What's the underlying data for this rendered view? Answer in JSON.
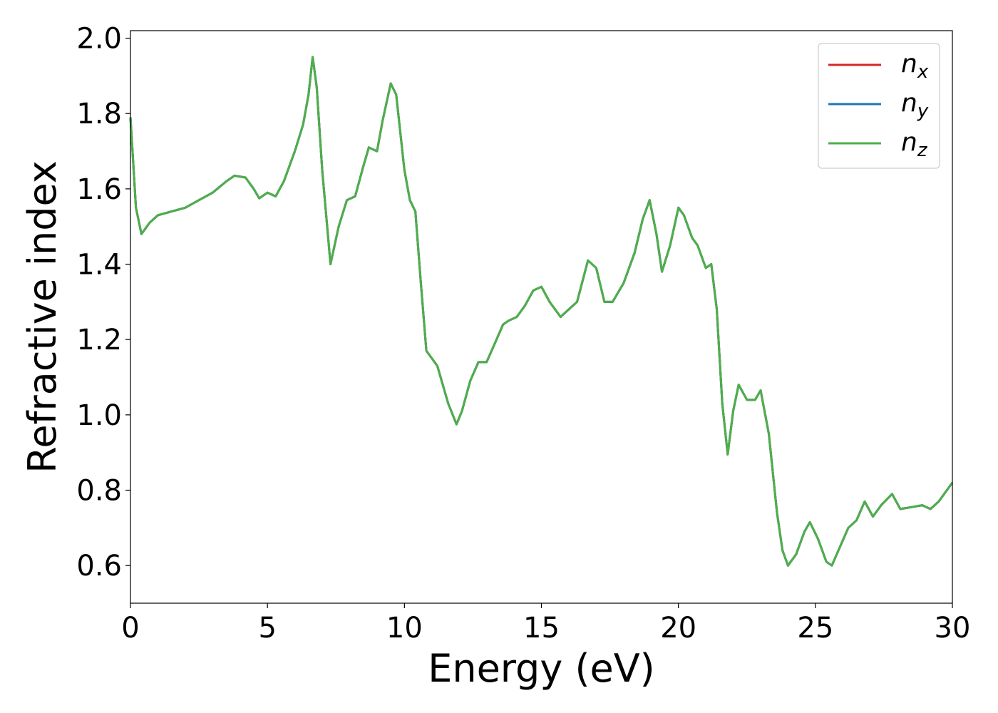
{
  "chart_data": {
    "type": "line",
    "title": "",
    "xlabel": "Energy (eV)",
    "ylabel": "Refractive index",
    "xlim": [
      0,
      30
    ],
    "ylim": [
      0.5,
      2.02
    ],
    "xticks": [
      0,
      5,
      10,
      15,
      20,
      25,
      30
    ],
    "xtick_labels": [
      "0",
      "5",
      "10",
      "15",
      "20",
      "25",
      "30"
    ],
    "yticks": [
      0.6,
      0.8,
      1.0,
      1.2,
      1.4,
      1.6,
      1.8,
      2.0
    ],
    "ytick_labels": [
      "0.6",
      "0.8",
      "1.0",
      "1.2",
      "1.4",
      "1.6",
      "1.8",
      "2.0"
    ],
    "grid": false,
    "legend_position": "top-right",
    "x": [
      0,
      0.2,
      0.4,
      0.7,
      1.0,
      1.5,
      2.0,
      2.5,
      3.0,
      3.5,
      3.8,
      4.2,
      4.5,
      4.7,
      5.0,
      5.3,
      5.6,
      6.0,
      6.3,
      6.5,
      6.65,
      6.8,
      7.0,
      7.3,
      7.6,
      7.9,
      8.2,
      8.5,
      8.7,
      9.0,
      9.2,
      9.5,
      9.7,
      10.0,
      10.2,
      10.4,
      10.6,
      10.8,
      11.0,
      11.2,
      11.4,
      11.6,
      11.9,
      12.1,
      12.4,
      12.7,
      13.0,
      13.3,
      13.6,
      13.8,
      14.1,
      14.4,
      14.7,
      15.0,
      15.3,
      15.7,
      16.0,
      16.3,
      16.7,
      17.0,
      17.3,
      17.6,
      18.0,
      18.4,
      18.7,
      18.95,
      19.2,
      19.4,
      19.7,
      20.0,
      20.2,
      20.5,
      20.7,
      21.0,
      21.2,
      21.4,
      21.6,
      21.8,
      22.0,
      22.2,
      22.5,
      22.8,
      23.0,
      23.3,
      23.6,
      23.8,
      24.0,
      24.3,
      24.6,
      24.8,
      25.1,
      25.4,
      25.6,
      25.9,
      26.2,
      26.5,
      26.8,
      27.1,
      27.4,
      27.8,
      28.1,
      28.5,
      28.9,
      29.2,
      29.5,
      29.8,
      30.0
    ],
    "series": [
      {
        "name": "n_x",
        "color": "#d62728",
        "values": [
          1.79,
          1.55,
          1.48,
          1.51,
          1.53,
          1.54,
          1.55,
          1.57,
          1.59,
          1.62,
          1.635,
          1.63,
          1.6,
          1.575,
          1.59,
          1.58,
          1.62,
          1.7,
          1.77,
          1.85,
          1.95,
          1.87,
          1.65,
          1.4,
          1.5,
          1.57,
          1.58,
          1.66,
          1.71,
          1.7,
          1.78,
          1.88,
          1.85,
          1.65,
          1.57,
          1.54,
          1.35,
          1.17,
          1.15,
          1.13,
          1.08,
          1.03,
          0.975,
          1.01,
          1.09,
          1.14,
          1.14,
          1.19,
          1.24,
          1.25,
          1.26,
          1.29,
          1.33,
          1.34,
          1.3,
          1.26,
          1.28,
          1.3,
          1.41,
          1.39,
          1.3,
          1.3,
          1.35,
          1.43,
          1.52,
          1.57,
          1.48,
          1.38,
          1.45,
          1.55,
          1.53,
          1.47,
          1.45,
          1.39,
          1.4,
          1.28,
          1.03,
          0.895,
          1.01,
          1.08,
          1.04,
          1.04,
          1.065,
          0.95,
          0.74,
          0.64,
          0.6,
          0.63,
          0.69,
          0.715,
          0.67,
          0.61,
          0.6,
          0.65,
          0.7,
          0.72,
          0.77,
          0.73,
          0.76,
          0.79,
          0.75,
          0.755,
          0.76,
          0.75,
          0.77,
          0.8,
          0.82
        ]
      },
      {
        "name": "n_y",
        "color": "#1f77b4",
        "values": [
          1.79,
          1.55,
          1.48,
          1.51,
          1.53,
          1.54,
          1.55,
          1.57,
          1.59,
          1.62,
          1.635,
          1.63,
          1.6,
          1.575,
          1.59,
          1.58,
          1.62,
          1.7,
          1.77,
          1.85,
          1.95,
          1.87,
          1.65,
          1.4,
          1.5,
          1.57,
          1.58,
          1.66,
          1.71,
          1.7,
          1.78,
          1.88,
          1.85,
          1.65,
          1.57,
          1.54,
          1.35,
          1.17,
          1.15,
          1.13,
          1.08,
          1.03,
          0.975,
          1.01,
          1.09,
          1.14,
          1.14,
          1.19,
          1.24,
          1.25,
          1.26,
          1.29,
          1.33,
          1.34,
          1.3,
          1.26,
          1.28,
          1.3,
          1.41,
          1.39,
          1.3,
          1.3,
          1.35,
          1.43,
          1.52,
          1.57,
          1.48,
          1.38,
          1.45,
          1.55,
          1.53,
          1.47,
          1.45,
          1.39,
          1.4,
          1.28,
          1.03,
          0.895,
          1.01,
          1.08,
          1.04,
          1.04,
          1.065,
          0.95,
          0.74,
          0.64,
          0.6,
          0.63,
          0.69,
          0.715,
          0.67,
          0.61,
          0.6,
          0.65,
          0.7,
          0.72,
          0.77,
          0.73,
          0.76,
          0.79,
          0.75,
          0.755,
          0.76,
          0.75,
          0.77,
          0.8,
          0.82
        ]
      },
      {
        "name": "n_z",
        "color": "#4daf4a",
        "values": [
          1.79,
          1.55,
          1.48,
          1.51,
          1.53,
          1.54,
          1.55,
          1.57,
          1.59,
          1.62,
          1.635,
          1.63,
          1.6,
          1.575,
          1.59,
          1.58,
          1.62,
          1.7,
          1.77,
          1.85,
          1.95,
          1.87,
          1.65,
          1.4,
          1.5,
          1.57,
          1.58,
          1.66,
          1.71,
          1.7,
          1.78,
          1.88,
          1.85,
          1.65,
          1.57,
          1.54,
          1.35,
          1.17,
          1.15,
          1.13,
          1.08,
          1.03,
          0.975,
          1.01,
          1.09,
          1.14,
          1.14,
          1.19,
          1.24,
          1.25,
          1.26,
          1.29,
          1.33,
          1.34,
          1.3,
          1.26,
          1.28,
          1.3,
          1.41,
          1.39,
          1.3,
          1.3,
          1.35,
          1.43,
          1.52,
          1.57,
          1.48,
          1.38,
          1.45,
          1.55,
          1.53,
          1.47,
          1.45,
          1.39,
          1.4,
          1.28,
          1.03,
          0.895,
          1.01,
          1.08,
          1.04,
          1.04,
          1.065,
          0.95,
          0.74,
          0.64,
          0.6,
          0.63,
          0.69,
          0.715,
          0.67,
          0.61,
          0.6,
          0.65,
          0.7,
          0.72,
          0.77,
          0.73,
          0.76,
          0.79,
          0.75,
          0.755,
          0.76,
          0.75,
          0.77,
          0.8,
          0.82
        ]
      }
    ],
    "legend": [
      {
        "symbol": "n",
        "subscript": "x",
        "color": "#d62728"
      },
      {
        "symbol": "n",
        "subscript": "y",
        "color": "#1f77b4"
      },
      {
        "symbol": "n",
        "subscript": "z",
        "color": "#4daf4a"
      }
    ]
  }
}
